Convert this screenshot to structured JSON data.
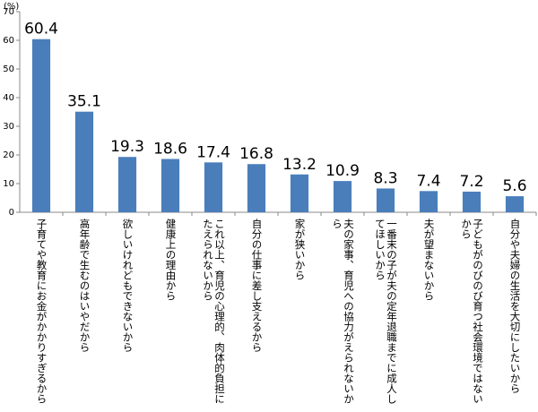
{
  "chart_data": {
    "type": "bar",
    "y_unit": "(%)",
    "categories": [
      "子育てや教育にお金がかかりすぎるから",
      "高年齢で生むのはいやだから",
      "欲しいけれどもできないから",
      "健康上の理由から",
      "これ以上、育児の心理的、肉体的負担にたえられないから",
      "自分の仕事に差し支えるから",
      "家が狭いから",
      "夫の家事、育児への協力がえられないから",
      "一番末の子が夫の定年退職までに成人してほしいから",
      "夫が望まないから",
      "子どもがのびのび育つ社会環境ではないから",
      "自分や夫婦の生活を大切にしたいから"
    ],
    "values": [
      60.4,
      35.1,
      19.3,
      18.6,
      17.4,
      16.8,
      13.2,
      10.9,
      8.3,
      7.4,
      7.2,
      5.6
    ],
    "color": "#4a7ebb",
    "ylim": [
      0,
      70
    ],
    "yticks": [
      0,
      10,
      20,
      30,
      40,
      50,
      60,
      70
    ],
    "grid": false
  }
}
